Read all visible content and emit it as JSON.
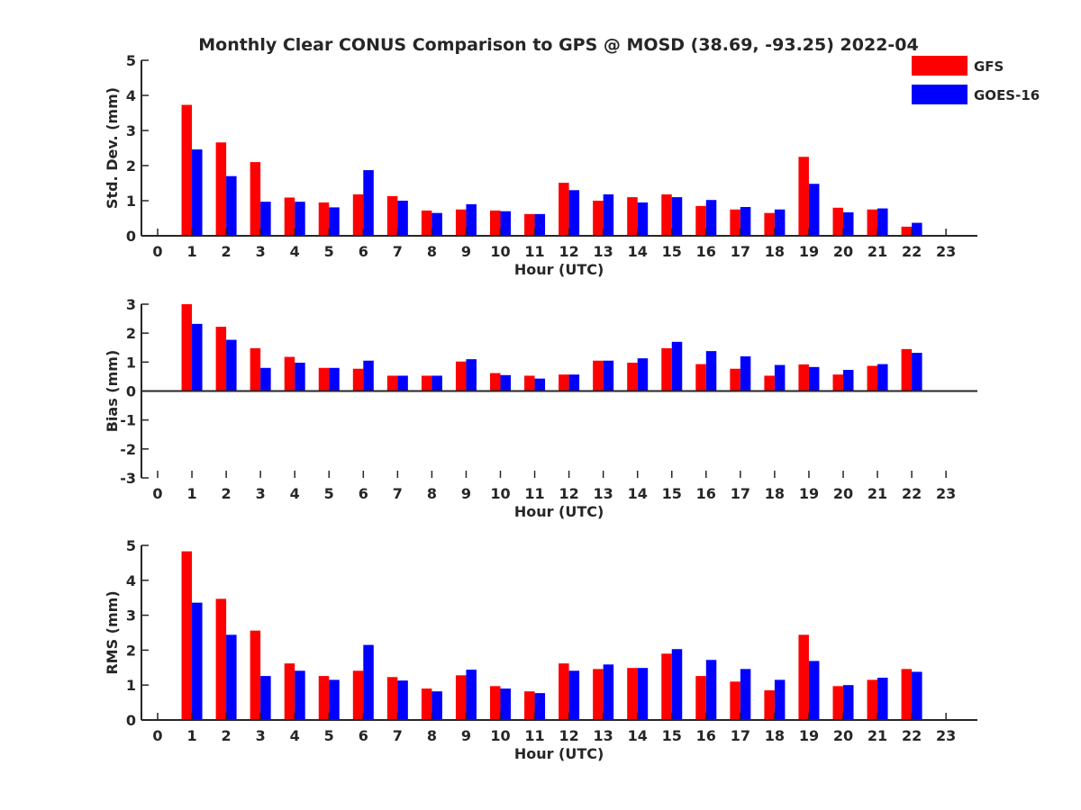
{
  "title": "Monthly Clear CONUS Comparison to GPS @ MOSD (38.69, -93.25) 2022-04",
  "legend": {
    "placement": "top-right",
    "items": [
      {
        "name": "GFS",
        "color": "#ff0000"
      },
      {
        "name": "GOES-16",
        "color": "#0000ff"
      }
    ]
  },
  "chart_data": [
    {
      "type": "bar",
      "ylabel": "Std. Dev. (mm)",
      "xlabel": "Hour (UTC)",
      "ylim": [
        0,
        5
      ],
      "yticks": [
        0,
        1,
        2,
        3,
        4,
        5
      ],
      "categories": [
        "0",
        "1",
        "2",
        "3",
        "4",
        "5",
        "6",
        "7",
        "8",
        "9",
        "10",
        "11",
        "12",
        "13",
        "14",
        "15",
        "16",
        "17",
        "18",
        "19",
        "20",
        "21",
        "22",
        "23"
      ],
      "series": [
        {
          "name": "GFS",
          "values": [
            null,
            3.73,
            2.66,
            2.1,
            1.09,
            0.95,
            1.18,
            1.13,
            0.72,
            0.75,
            0.72,
            0.62,
            1.51,
            1.0,
            1.1,
            1.18,
            0.85,
            0.75,
            0.65,
            2.25,
            0.8,
            0.75,
            0.26,
            null
          ]
        },
        {
          "name": "GOES-16",
          "values": [
            null,
            2.46,
            1.7,
            0.97,
            0.97,
            0.81,
            1.87,
            1.0,
            0.65,
            0.9,
            0.7,
            0.62,
            1.3,
            1.18,
            0.95,
            1.1,
            1.02,
            0.82,
            0.75,
            1.48,
            0.67,
            0.78,
            0.37,
            null
          ]
        }
      ]
    },
    {
      "type": "bar",
      "ylabel": "Bias (mm)",
      "xlabel": "Hour (UTC)",
      "ylim": [
        -3,
        3
      ],
      "yticks": [
        -3,
        -2,
        -1,
        0,
        1,
        2,
        3
      ],
      "categories": [
        "0",
        "1",
        "2",
        "3",
        "4",
        "5",
        "6",
        "7",
        "8",
        "9",
        "10",
        "11",
        "12",
        "13",
        "14",
        "15",
        "16",
        "17",
        "18",
        "19",
        "20",
        "21",
        "22",
        "23"
      ],
      "series": [
        {
          "name": "GFS",
          "values": [
            null,
            3.0,
            2.22,
            1.48,
            1.18,
            0.8,
            0.77,
            0.53,
            0.53,
            1.02,
            0.62,
            0.53,
            0.57,
            1.05,
            0.98,
            1.48,
            0.93,
            0.77,
            0.53,
            0.92,
            0.57,
            0.87,
            1.45,
            null
          ]
        },
        {
          "name": "GOES-16",
          "values": [
            null,
            2.32,
            1.77,
            0.8,
            0.98,
            0.8,
            1.05,
            0.53,
            0.53,
            1.1,
            0.55,
            0.43,
            0.57,
            1.05,
            1.13,
            1.7,
            1.38,
            1.2,
            0.9,
            0.83,
            0.73,
            0.93,
            1.32,
            null
          ]
        }
      ]
    },
    {
      "type": "bar",
      "ylabel": "RMS (mm)",
      "xlabel": "Hour (UTC)",
      "ylim": [
        0,
        5
      ],
      "yticks": [
        0,
        1,
        2,
        3,
        4,
        5
      ],
      "categories": [
        "0",
        "1",
        "2",
        "3",
        "4",
        "5",
        "6",
        "7",
        "8",
        "9",
        "10",
        "11",
        "12",
        "13",
        "14",
        "15",
        "16",
        "17",
        "18",
        "19",
        "20",
        "21",
        "22",
        "23"
      ],
      "series": [
        {
          "name": "GFS",
          "values": [
            null,
            4.83,
            3.47,
            2.56,
            1.62,
            1.26,
            1.41,
            1.23,
            0.9,
            1.28,
            0.97,
            0.82,
            1.62,
            1.46,
            1.49,
            1.9,
            1.26,
            1.1,
            0.85,
            2.44,
            0.97,
            1.15,
            1.46,
            null
          ]
        },
        {
          "name": "GOES-16",
          "values": [
            null,
            3.36,
            2.44,
            1.26,
            1.41,
            1.15,
            2.15,
            1.13,
            0.82,
            1.44,
            0.9,
            0.77,
            1.41,
            1.59,
            1.49,
            2.03,
            1.72,
            1.46,
            1.15,
            1.69,
            1.0,
            1.21,
            1.38,
            null
          ]
        }
      ]
    }
  ]
}
